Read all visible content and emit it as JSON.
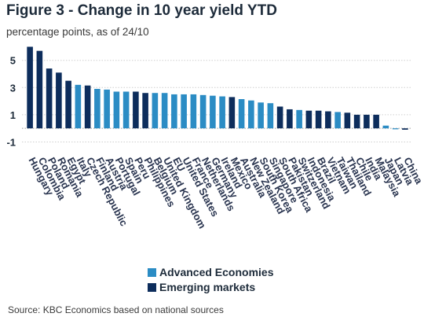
{
  "title": "Figure 3 - Change in 10 year yield YTD",
  "subtitle": "percentage points, as of 24/10",
  "legend": {
    "advanced_label": "Advanced Economies",
    "emerging_label": "Emerging markets",
    "advanced_color": "#2b8cc4",
    "emerging_color": "#0d2d5c"
  },
  "source": "Source: KBC Economics based on national sources",
  "chart_data": {
    "type": "bar",
    "yticks": [
      -1,
      1,
      3,
      5
    ],
    "ylim": [
      -1.9,
      6.2
    ],
    "grid": true,
    "legend_position": "bottom",
    "categories": [
      "Hungary",
      "Colombia",
      "Poland",
      "Romania",
      "Egypt",
      "Italy",
      "Czech Republic",
      "Finland",
      "Austria",
      "Portugal",
      "Spain",
      "Peru",
      "Philippines",
      "Belgium",
      "United Kingdom",
      "EU",
      "United States",
      "France",
      "Netherlands",
      "Germany",
      "Ireland",
      "Mexico",
      "Australia",
      "New Zealand",
      "South Korea",
      "Singapore",
      "South Africa",
      "Pakistan",
      "Switzerland",
      "Indonesia",
      "Brazil",
      "Vietnam",
      "Taiwan",
      "Thailand",
      "Chile",
      "India",
      "Malaysia",
      "Japan",
      "Latvia",
      "China"
    ],
    "groups": [
      "Emerging markets",
      "Emerging markets",
      "Emerging markets",
      "Emerging markets",
      "Emerging markets",
      "Advanced Economies",
      "Emerging markets",
      "Advanced Economies",
      "Advanced Economies",
      "Advanced Economies",
      "Advanced Economies",
      "Emerging markets",
      "Emerging markets",
      "Advanced Economies",
      "Advanced Economies",
      "Advanced Economies",
      "Advanced Economies",
      "Advanced Economies",
      "Advanced Economies",
      "Advanced Economies",
      "Advanced Economies",
      "Emerging markets",
      "Advanced Economies",
      "Advanced Economies",
      "Advanced Economies",
      "Advanced Economies",
      "Emerging markets",
      "Emerging markets",
      "Advanced Economies",
      "Emerging markets",
      "Emerging markets",
      "Emerging markets",
      "Advanced Economies",
      "Emerging markets",
      "Emerging markets",
      "Emerging markets",
      "Emerging markets",
      "Advanced Economies",
      "Advanced Economies",
      "Emerging markets"
    ],
    "values": [
      6.0,
      5.7,
      4.4,
      4.1,
      3.5,
      3.2,
      3.15,
      2.9,
      2.85,
      2.7,
      2.7,
      2.7,
      2.6,
      2.6,
      2.6,
      2.5,
      2.5,
      2.5,
      2.45,
      2.4,
      2.35,
      2.3,
      2.15,
      2.05,
      1.9,
      1.85,
      1.6,
      1.4,
      1.35,
      1.3,
      1.3,
      1.25,
      1.2,
      1.15,
      1.0,
      1.0,
      1.0,
      0.2,
      -0.05,
      -0.1
    ]
  }
}
